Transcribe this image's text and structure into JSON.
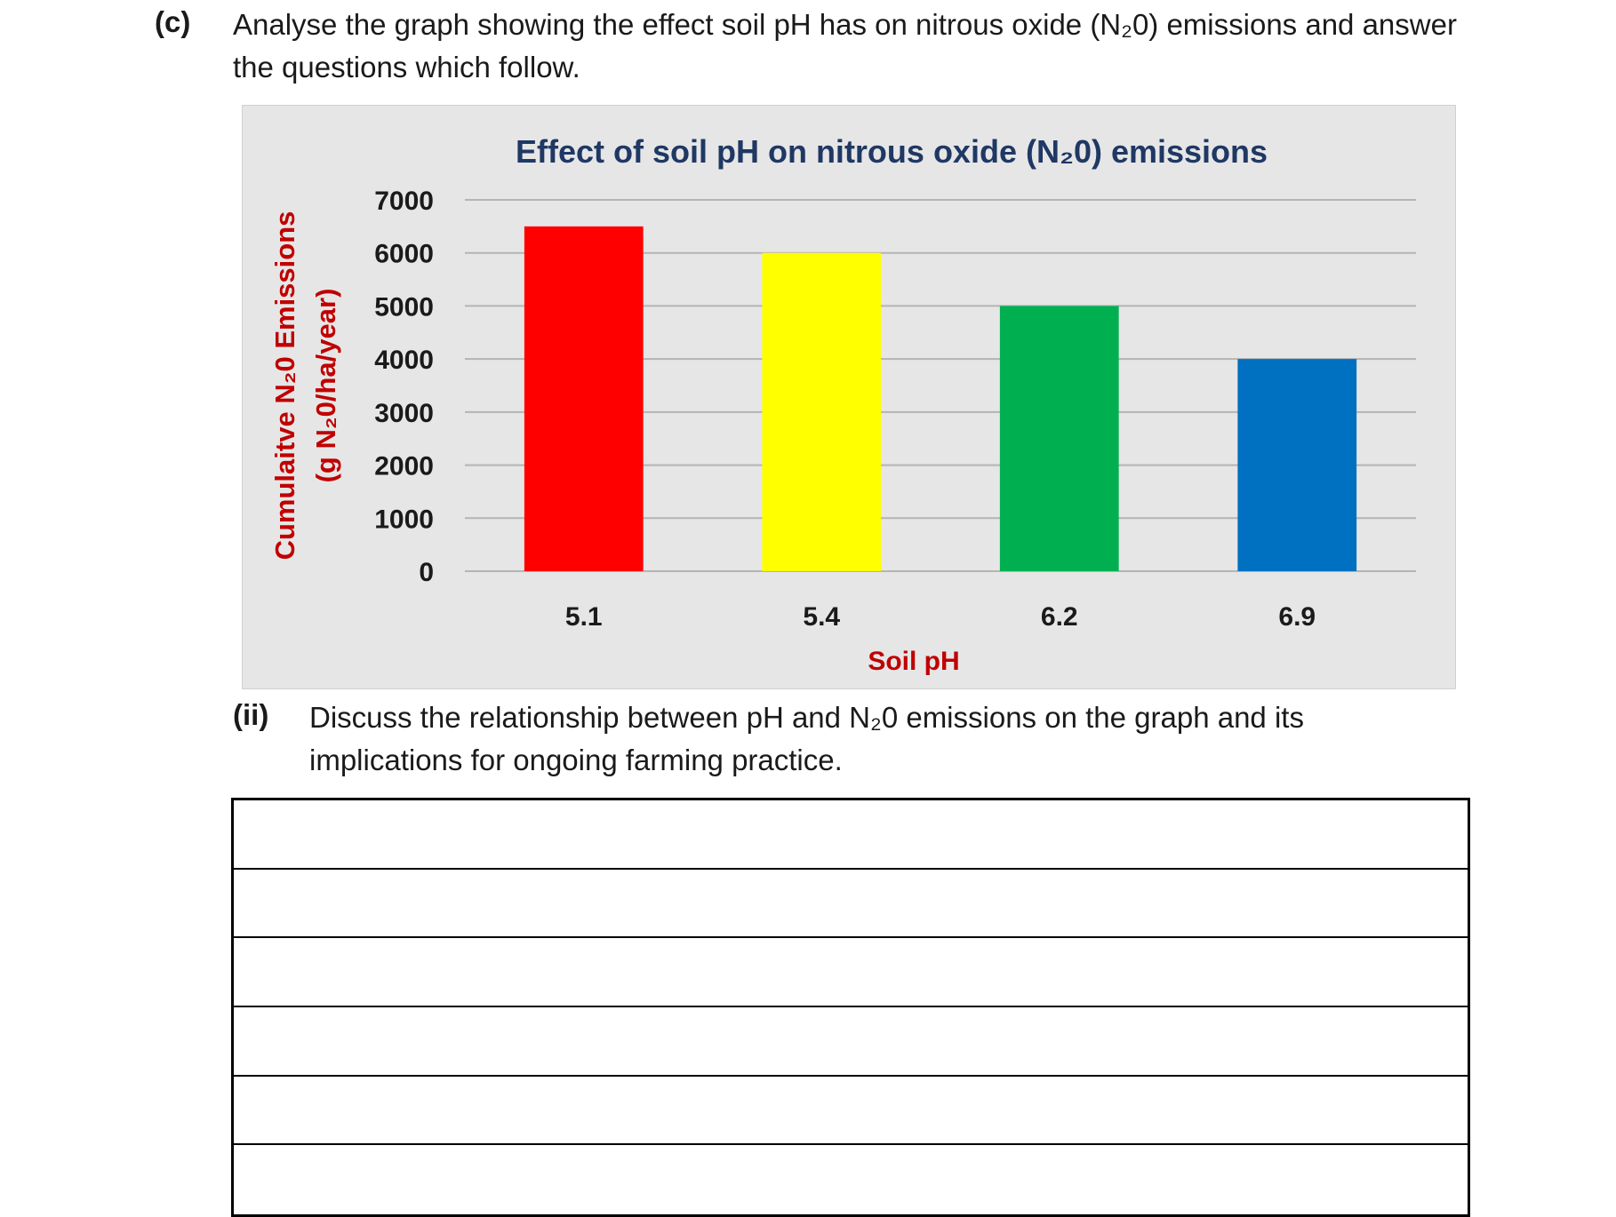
{
  "question_c": {
    "label": "(c)",
    "text": "Analyse the graph showing the effect soil pH has on nitrous oxide (N₂0) emissions and answer the questions which follow."
  },
  "question_ii": {
    "label": "(ii)",
    "text": "Discuss the relationship between pH and N₂0 emissions on the graph and its implications for ongoing farming practice."
  },
  "answer_lines": 6,
  "chart_data": {
    "type": "bar",
    "title": "Effect of soil pH on nitrous oxide (N₂0) emissions",
    "xlabel": "Soil pH",
    "ylabel": "Cumulaitve N₂0 Emissions (g N₂0/ha/year)",
    "ylabel_lines": [
      "Cumulaitve N₂0 Emissions",
      "(g N₂0/ha/year)"
    ],
    "categories": [
      "5.1",
      "5.4",
      "6.2",
      "6.9"
    ],
    "values": [
      6500,
      6000,
      5000,
      4000
    ],
    "bar_colors": [
      "#ff0000",
      "#ffff00",
      "#00b050",
      "#0070c0"
    ],
    "ylim": [
      0,
      7000
    ],
    "yticks": [
      0,
      1000,
      2000,
      3000,
      4000,
      5000,
      6000,
      7000
    ],
    "grid": true,
    "legend": "none",
    "title_color": "#1f3864",
    "axis_label_color": "#c00000"
  }
}
